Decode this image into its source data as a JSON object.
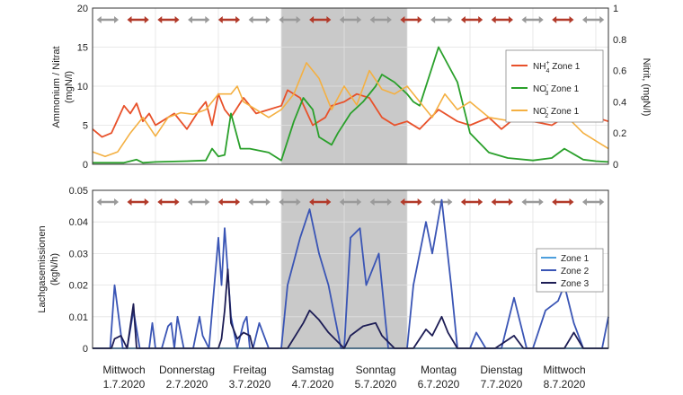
{
  "chart_data": [
    {
      "type": "line",
      "title": "",
      "ylabel": "Ammonium / Nitrat",
      "ylabel_unit": "(mgN/l)",
      "y2label": "Nitrit, (mgN/l)",
      "ylim": [
        0,
        20
      ],
      "y2lim": [
        0,
        1
      ],
      "yticks": [
        "0",
        "5",
        "10",
        "15",
        "20"
      ],
      "y2ticks": [
        "0",
        "0.2",
        "0.4",
        "0.6",
        "0.8",
        "1"
      ],
      "xlim": [
        0,
        8.2
      ],
      "shaded_range": [
        3,
        5
      ],
      "legend_position": "right",
      "legend": [
        {
          "base": "NH",
          "sup": "+",
          "sub": "4",
          "suffix": " Zone 1",
          "color": "#e8512a"
        },
        {
          "base": "NO",
          "sup": "-",
          "sub": "3",
          "suffix": " Zone 1",
          "color": "#2aa02b"
        },
        {
          "base": "NO",
          "sup": "-",
          "sub": "2",
          "suffix": " Zone 1",
          "color": "#f4b042"
        }
      ],
      "series": [
        {
          "name": "NH4+ Zone 1",
          "axis": "left",
          "color": "#e8512a",
          "x": [
            0,
            0.15,
            0.3,
            0.5,
            0.6,
            0.7,
            0.8,
            0.9,
            1.0,
            1.1,
            1.3,
            1.5,
            1.7,
            1.8,
            1.9,
            2.0,
            2.1,
            2.2,
            2.4,
            2.6,
            2.8,
            3.0,
            3.1,
            3.3,
            3.5,
            3.7,
            3.8,
            4.0,
            4.2,
            4.4,
            4.6,
            4.8,
            5.0,
            5.2,
            5.5,
            5.8,
            6.0,
            6.3,
            6.5,
            6.8,
            7.0,
            7.3,
            7.5,
            7.8,
            8.0,
            8.2
          ],
          "values": [
            4.5,
            3.5,
            4,
            7.5,
            6.5,
            7.8,
            5.5,
            6.5,
            5,
            5.5,
            6.5,
            4.5,
            7,
            8,
            5,
            9,
            7,
            6,
            8.5,
            6.5,
            7,
            7.5,
            9.5,
            8.5,
            5,
            6,
            7.5,
            8,
            9,
            8.5,
            6,
            5,
            5.5,
            4.5,
            7,
            5.5,
            5,
            6,
            4.5,
            6.5,
            5.5,
            5,
            6,
            5.5,
            6,
            5.5
          ]
        },
        {
          "name": "NO3- Zone 1",
          "axis": "left",
          "color": "#2aa02b",
          "x": [
            0,
            0.5,
            0.7,
            0.8,
            1.0,
            1.5,
            1.8,
            1.9,
            2.0,
            2.1,
            2.2,
            2.35,
            2.5,
            2.8,
            3.0,
            3.2,
            3.35,
            3.5,
            3.6,
            3.8,
            3.9,
            4.1,
            4.3,
            4.5,
            4.6,
            4.8,
            5.0,
            5.1,
            5.2,
            5.5,
            5.8,
            6.0,
            6.3,
            6.6,
            7.0,
            7.3,
            7.5,
            7.8,
            8.0,
            8.2
          ],
          "values": [
            0.2,
            0.2,
            0.6,
            0.2,
            0.3,
            0.4,
            0.5,
            2,
            1,
            1.2,
            6.5,
            2,
            2,
            1.5,
            0.5,
            5.5,
            8.5,
            7,
            3.5,
            2.5,
            4,
            6.5,
            8,
            10,
            11.5,
            10.5,
            9,
            8,
            7.5,
            15,
            10.5,
            4,
            1.5,
            0.8,
            0.5,
            0.8,
            2,
            0.6,
            0.4,
            0.3
          ]
        },
        {
          "name": "NO2- Zone 1",
          "axis": "right",
          "color": "#f4b042",
          "x": [
            0,
            0.2,
            0.4,
            0.6,
            0.8,
            1.0,
            1.2,
            1.4,
            1.6,
            1.8,
            2.0,
            2.2,
            2.3,
            2.4,
            2.6,
            2.8,
            3.0,
            3.2,
            3.4,
            3.6,
            3.8,
            4.0,
            4.2,
            4.4,
            4.6,
            4.8,
            5.0,
            5.2,
            5.4,
            5.6,
            5.8,
            6.0,
            6.3,
            6.6,
            7.0,
            7.3,
            7.5,
            7.8,
            8.0,
            8.2
          ],
          "values": [
            0.08,
            0.05,
            0.08,
            0.2,
            0.3,
            0.18,
            0.3,
            0.33,
            0.32,
            0.35,
            0.45,
            0.45,
            0.5,
            0.4,
            0.35,
            0.3,
            0.35,
            0.45,
            0.65,
            0.55,
            0.35,
            0.5,
            0.38,
            0.6,
            0.48,
            0.45,
            0.5,
            0.4,
            0.3,
            0.45,
            0.35,
            0.4,
            0.3,
            0.28,
            0.35,
            0.38,
            0.32,
            0.2,
            0.15,
            0.1
          ]
        }
      ]
    },
    {
      "type": "line",
      "title": "",
      "ylabel": "Lachgasemissionen",
      "ylabel_unit": "(kgN/h)",
      "ylim": [
        0,
        0.05
      ],
      "yticks": [
        "0",
        "0.01",
        "0.02",
        "0.03",
        "0.04",
        "0.05"
      ],
      "xlim": [
        0,
        8.2
      ],
      "shaded_range": [
        3,
        5
      ],
      "legend_position": "right",
      "legend": [
        {
          "label": "Zone 1",
          "color": "#4d9fdd"
        },
        {
          "label": "Zone 2",
          "color": "#3a55b5"
        },
        {
          "label": "Zone 3",
          "color": "#1d1d55"
        }
      ],
      "series": [
        {
          "name": "Zone 1",
          "color": "#4d9fdd",
          "x": [
            0,
            8.2
          ],
          "values": [
            0,
            0
          ]
        },
        {
          "name": "Zone 2",
          "color": "#3a55b5",
          "x": [
            0,
            0.28,
            0.35,
            0.48,
            0.55,
            0.65,
            0.75,
            0.9,
            0.95,
            1.0,
            1.1,
            1.2,
            1.25,
            1.3,
            1.35,
            1.45,
            1.6,
            1.7,
            1.75,
            1.85,
            2.0,
            2.05,
            2.1,
            2.2,
            2.3,
            2.4,
            2.45,
            2.5,
            2.55,
            2.65,
            2.8,
            2.9,
            3.0,
            3.1,
            3.3,
            3.45,
            3.6,
            3.75,
            3.95,
            4.0,
            4.1,
            4.25,
            4.35,
            4.55,
            4.7,
            4.85,
            5.0,
            5.1,
            5.3,
            5.4,
            5.55,
            5.7,
            5.8,
            6.0,
            6.1,
            6.25,
            6.4,
            6.5,
            6.7,
            6.9,
            7.0,
            7.2,
            7.4,
            7.5,
            7.65,
            7.8,
            7.95,
            8.1,
            8.2
          ],
          "values": [
            0,
            0,
            0.02,
            0,
            0,
            0.012,
            0,
            0,
            0.008,
            0,
            0,
            0.007,
            0.008,
            0,
            0.01,
            0,
            0,
            0.01,
            0.004,
            0,
            0.035,
            0.02,
            0.038,
            0.01,
            0,
            0.008,
            0.01,
            0,
            0,
            0.008,
            0,
            0,
            0,
            0.02,
            0.035,
            0.044,
            0.03,
            0.02,
            0,
            0,
            0.035,
            0.038,
            0.02,
            0.03,
            0,
            0,
            0,
            0.02,
            0.04,
            0.03,
            0.047,
            0.02,
            0,
            0,
            0.005,
            0,
            0,
            0,
            0.016,
            0,
            0,
            0.012,
            0.015,
            0.02,
            0.008,
            0,
            0,
            0,
            0.01
          ]
        },
        {
          "name": "Zone 3",
          "color": "#1d1d55",
          "x": [
            0,
            0.3,
            0.35,
            0.45,
            0.55,
            0.65,
            0.7,
            2.0,
            2.05,
            2.1,
            2.15,
            2.2,
            2.3,
            2.4,
            2.5,
            2.55,
            3.1,
            3.35,
            3.45,
            3.6,
            3.75,
            4.0,
            4.1,
            4.3,
            4.5,
            4.6,
            4.8,
            5.1,
            5.3,
            5.4,
            5.55,
            5.65,
            5.8,
            6.4,
            6.7,
            6.85,
            7.5,
            7.65,
            7.8,
            8.2
          ],
          "values": [
            0,
            0,
            0.003,
            0.004,
            0,
            0.014,
            0,
            0,
            0.003,
            0.012,
            0.025,
            0.008,
            0.003,
            0.005,
            0.004,
            0,
            0,
            0.008,
            0.012,
            0.009,
            0.005,
            0,
            0.004,
            0.007,
            0.008,
            0.004,
            0,
            0,
            0.006,
            0.004,
            0.01,
            0.005,
            0,
            0,
            0.004,
            0,
            0,
            0.005,
            0,
            0
          ]
        }
      ]
    }
  ],
  "x_axis": {
    "categories": [
      {
        "day": "Mittwoch",
        "date": "1.7.2020"
      },
      {
        "day": "Donnerstag",
        "date": "2.7.2020"
      },
      {
        "day": "Freitag",
        "date": "3.7.2020"
      },
      {
        "day": "Samstag",
        "date": "4.7.2020"
      },
      {
        "day": "Sonntag",
        "date": "5.7.2020"
      },
      {
        "day": "Montag",
        "date": "6.7.2020"
      },
      {
        "day": "Dienstag",
        "date": "7.7.2020"
      },
      {
        "day": "Mittwoch",
        "date": "8.7.2020"
      }
    ]
  },
  "arrow_pattern": [
    "gray",
    "red",
    "red",
    "gray",
    "red",
    "gray",
    "gray",
    "red",
    "gray",
    "gray",
    "red",
    "gray",
    "red",
    "red",
    "gray",
    "red",
    "gray"
  ],
  "colors": {
    "red_arrow": "#b23a2a",
    "gray_arrow": "#9a9a9a",
    "shade": "#c9c9c9",
    "frame": "#333333"
  }
}
